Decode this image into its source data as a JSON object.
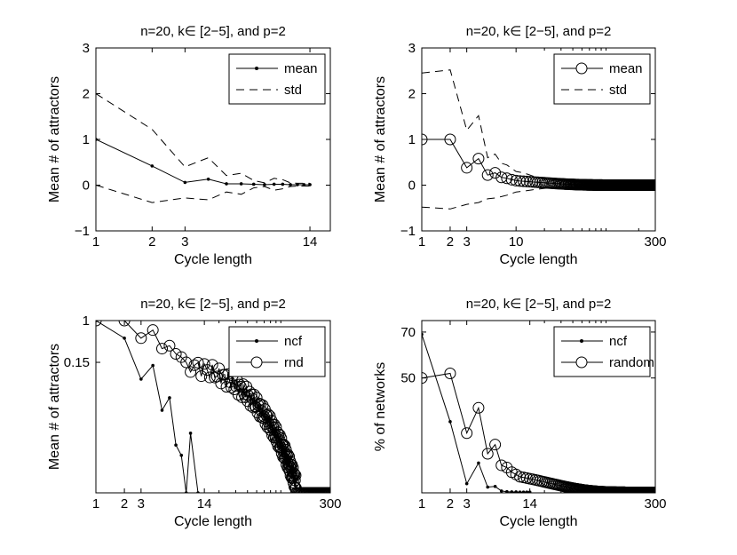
{
  "chart_data": [
    {
      "type": "line",
      "title": "n=20, k∈ [2−5], and p=2",
      "xlabel": "Cycle length",
      "ylabel": "Mean # of attractors",
      "xscale": "log",
      "xlim": [
        1,
        18
      ],
      "ylim": [
        -1,
        3
      ],
      "xticks": [
        1,
        2,
        3,
        14
      ],
      "xticklabels": [
        "1",
        "2",
        "3",
        "14"
      ],
      "yticks": [
        -1,
        0,
        1,
        2,
        3
      ],
      "yticklabels": [
        "−1",
        "0",
        "1",
        "2",
        "3"
      ],
      "legend_position": "top-right",
      "series": [
        {
          "name": "mean",
          "style": "solid-dot",
          "x": [
            1,
            2,
            3,
            4,
            5,
            6,
            7,
            8,
            9,
            10,
            11,
            12,
            13,
            14
          ],
          "y": [
            1.0,
            0.42,
            0.06,
            0.13,
            0.03,
            0.03,
            0.02,
            0.01,
            0.02,
            0.02,
            0.01,
            0.01,
            0.01,
            0.01
          ]
        },
        {
          "name": "std",
          "style": "dashed",
          "x": [
            1,
            2,
            3,
            4,
            5,
            6,
            7,
            8,
            9,
            10,
            11,
            12,
            13,
            14
          ],
          "y": [
            2.0,
            1.22,
            0.4,
            0.6,
            0.21,
            0.26,
            0.1,
            0.05,
            0.15,
            0.12,
            0.05,
            0.04,
            0.04,
            0.04
          ]
        },
        {
          "name": "",
          "style": "dashed",
          "x": [
            1,
            2,
            3,
            4,
            5,
            6,
            7,
            8,
            9,
            10,
            11,
            12,
            13,
            14
          ],
          "y": [
            0.0,
            -0.38,
            -0.28,
            -0.32,
            -0.15,
            -0.2,
            -0.06,
            -0.03,
            -0.11,
            -0.08,
            -0.03,
            -0.02,
            -0.02,
            -0.02
          ]
        }
      ]
    },
    {
      "type": "line",
      "title": "n=20, k∈ [2−5], and p=2",
      "xlabel": "Cycle length",
      "ylabel": "Mean # of attractors",
      "xscale": "log",
      "xlim": [
        1,
        300
      ],
      "ylim": [
        -1,
        3
      ],
      "xticks": [
        1,
        2,
        3,
        10,
        300
      ],
      "xticklabels": [
        "1",
        "2",
        "3",
        "10",
        "300"
      ],
      "yticks": [
        -1,
        0,
        1,
        2,
        3
      ],
      "yticklabels": [
        "−1",
        "0",
        "1",
        "2",
        "3"
      ],
      "legend_position": "top-right",
      "series": [
        {
          "name": "mean",
          "style": "solid-circle",
          "generator": "decay",
          "explicit": [
            [
              1,
              1.0
            ],
            [
              2,
              1.0
            ],
            [
              3,
              0.38
            ],
            [
              4,
              0.58
            ],
            [
              5,
              0.22
            ],
            [
              6,
              0.27
            ],
            [
              7,
              0.17
            ],
            [
              8,
              0.15
            ],
            [
              9,
              0.12
            ],
            [
              10,
              0.1
            ]
          ],
          "tail": {
            "from": 11,
            "to": 300,
            "start": 0.09,
            "end": 0.0,
            "rate": 0.06
          }
        },
        {
          "name": "std",
          "style": "dashed",
          "x": [
            1,
            2,
            3,
            4,
            5,
            6,
            7,
            8,
            10,
            12,
            15,
            20,
            30,
            50,
            100,
            300
          ],
          "y": [
            2.45,
            2.52,
            1.2,
            1.52,
            0.6,
            0.68,
            0.48,
            0.44,
            0.3,
            0.27,
            0.2,
            0.14,
            0.1,
            0.07,
            0.05,
            0.03
          ]
        },
        {
          "name": "",
          "style": "dashed",
          "x": [
            1,
            2,
            3,
            4,
            5,
            6,
            7,
            8,
            10,
            12,
            15,
            20,
            30,
            50,
            100,
            300
          ],
          "y": [
            -0.48,
            -0.52,
            -0.42,
            -0.38,
            -0.3,
            -0.28,
            -0.25,
            -0.22,
            -0.15,
            -0.13,
            -0.1,
            -0.07,
            -0.04,
            -0.03,
            -0.02,
            -0.01
          ]
        }
      ]
    },
    {
      "type": "line",
      "title": "n=20, k∈ [2−5], and p=2",
      "xlabel": "Cycle length",
      "ylabel": "Mean # of attractors",
      "xscale": "log",
      "yscale": "log",
      "xlim": [
        1,
        300
      ],
      "ylim": [
        0.0004,
        1.0
      ],
      "xticks": [
        1,
        2,
        3,
        14,
        300
      ],
      "xticklabels": [
        "1",
        "2",
        "3",
        "14",
        "300"
      ],
      "yticks": [
        1.0,
        0.15
      ],
      "yticklabels": [
        "1",
        "0.15"
      ],
      "legend_position": "top-right",
      "series": [
        {
          "name": "ncf",
          "style": "solid-dot",
          "x": [
            1,
            2,
            3,
            4,
            5,
            6,
            7,
            8,
            9,
            10,
            12
          ],
          "y": [
            1.0,
            0.45,
            0.07,
            0.13,
            0.017,
            0.03,
            0.0035,
            0.0022,
            0.0004,
            0.006,
            0.0004
          ]
        },
        {
          "name": "rnd",
          "style": "solid-circle",
          "generator": "descent",
          "explicit": [
            [
              1,
              1.0
            ],
            [
              2,
              1.0
            ],
            [
              3,
              0.45
            ],
            [
              4,
              0.65
            ],
            [
              5,
              0.28
            ],
            [
              6,
              0.32
            ],
            [
              7,
              0.22
            ],
            [
              8,
              0.19
            ],
            [
              9,
              0.15
            ]
          ],
          "tail": {
            "from": 10,
            "to": 130,
            "start": 0.13,
            "end": 0.0006,
            "jitter": 0.35
          },
          "floor": {
            "from": 130,
            "to": 300,
            "value": 0.0004
          }
        }
      ]
    },
    {
      "type": "line",
      "title": "n=20, k∈ [2−5], and p=2",
      "xlabel": "Cycle length",
      "ylabel": "% of networks",
      "xscale": "log",
      "xlim": [
        1,
        300
      ],
      "ylim": [
        0,
        75
      ],
      "xticks": [
        1,
        2,
        3,
        14,
        300
      ],
      "xticklabels": [
        "1",
        "2",
        "3",
        "14",
        "300"
      ],
      "yticks": [
        70,
        50
      ],
      "yticklabels": [
        "70",
        "50"
      ],
      "legend_position": "top-right",
      "series": [
        {
          "name": "ncf",
          "style": "solid-dot",
          "x": [
            1,
            2,
            3,
            4,
            5,
            6,
            7,
            8,
            9,
            10,
            11,
            12,
            13,
            14
          ],
          "y": [
            69,
            31,
            4,
            13,
            2.5,
            2.8,
            0.8,
            0.5,
            0.4,
            0.4,
            0.3,
            0.3,
            0.3,
            0.3
          ]
        },
        {
          "name": "random",
          "style": "solid-circle",
          "generator": "decay",
          "explicit": [
            [
              1,
              50
            ],
            [
              2,
              52
            ],
            [
              3,
              26
            ],
            [
              4,
              37
            ],
            [
              5,
              17
            ],
            [
              6,
              21
            ],
            [
              7,
              12
            ],
            [
              8,
              11
            ],
            [
              9,
              9
            ],
            [
              10,
              8
            ]
          ],
          "tail": {
            "from": 11,
            "to": 300,
            "start": 7,
            "end": 0.2,
            "rate": 0.045
          }
        }
      ]
    }
  ]
}
